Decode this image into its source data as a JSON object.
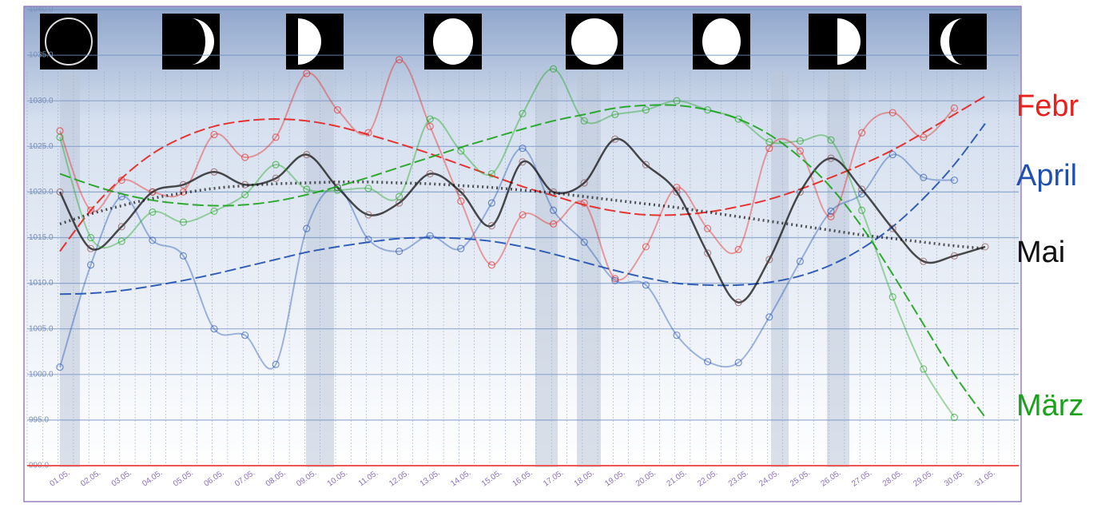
{
  "chart_data": {
    "type": "line",
    "categories": [
      "01.05.",
      "02.05.",
      "03.05.",
      "04.05.",
      "05.05.",
      "06.05.",
      "07.05.",
      "08.05.",
      "09.05.",
      "10.05.",
      "11.05.",
      "12.05.",
      "13.05.",
      "14.05.",
      "15.05.",
      "16.05.",
      "17.05.",
      "18.05.",
      "19.05.",
      "20.05.",
      "21.05.",
      "22.05.",
      "23.05.",
      "24.05.",
      "25.05.",
      "26.05.",
      "27.05.",
      "28.05.",
      "29.05.",
      "30.05.",
      "31.05."
    ],
    "ylim": [
      990,
      1040
    ],
    "yticks": [
      {
        "value": 990,
        "label": "990.0"
      },
      {
        "value": 995,
        "label": "995.0"
      },
      {
        "value": 1000,
        "label": "1000.0"
      },
      {
        "value": 1005,
        "label": "1005.0"
      },
      {
        "value": 1010,
        "label": "1010.0"
      },
      {
        "value": 1015,
        "label": "1015.0"
      },
      {
        "value": 1020,
        "label": "1020.0"
      },
      {
        "value": 1025,
        "label": "1025.0"
      },
      {
        "value": 1030,
        "label": "1030.0"
      },
      {
        "value": 1035,
        "label": "1035.0"
      },
      {
        "value": 1040,
        "label": "1040.0"
      }
    ],
    "grid": true,
    "series": [
      {
        "name": "Febr",
        "color": "#e8201c",
        "values": [
          1026.7,
          1018,
          1021.3,
          1020,
          1020,
          1026.3,
          1023.8,
          1026,
          1033,
          1029,
          1026.5,
          1034.5,
          1027.2,
          1019,
          1012,
          1017.5,
          1016.5,
          1018.8,
          1010.5,
          1014,
          1020.5,
          1016,
          1013.7,
          1024.8,
          1024.5,
          1017.3,
          1026.5,
          1028.7,
          1026,
          1029.2,
          null
        ],
        "trend": [
          1013.5,
          1018,
          1021.5,
          1024.2,
          1026,
          1027.2,
          1027.8,
          1028,
          1027.8,
          1027.2,
          1026.3,
          1025.3,
          1024.2,
          1023,
          1021.8,
          1020.6,
          1019.6,
          1018.6,
          1017.9,
          1017.5,
          1017.5,
          1017.8,
          1018.4,
          1019.2,
          1020.3,
          1021.6,
          1023,
          1024.6,
          1026.5,
          1028.5,
          1030.5
        ]
      },
      {
        "name": "April",
        "color": "#1f4fb0",
        "values": [
          1000.8,
          1012,
          1019.5,
          1014.7,
          1013,
          1005,
          1004.3,
          1001.1,
          1016,
          1020.5,
          1014.8,
          1013.5,
          1015.2,
          1013.8,
          1018.8,
          1024.8,
          1018,
          1014.5,
          1010.3,
          1009.8,
          1004.3,
          1001.4,
          1001.3,
          1006.3,
          1012.4,
          1017.9,
          1019.8,
          1024.1,
          1021.6,
          1021.3,
          null
        ],
        "trend": [
          1008.8,
          1008.9,
          1009.2,
          1009.7,
          1010.3,
          1011,
          1011.8,
          1012.6,
          1013.4,
          1014,
          1014.5,
          1014.9,
          1015,
          1014.9,
          1014.6,
          1014,
          1013.2,
          1012.3,
          1011.4,
          1010.6,
          1010,
          1009.8,
          1009.8,
          1010.1,
          1010.8,
          1012,
          1013.8,
          1016.2,
          1019.3,
          1023,
          1027.5
        ]
      },
      {
        "name": "Mai",
        "color": "#111111",
        "values": [
          1020,
          1013.8,
          1016.2,
          1020,
          1020.8,
          1022.2,
          1020.8,
          1021.5,
          1024.1,
          1020.5,
          1017.5,
          1018.8,
          1022,
          1020,
          1016.3,
          1023.3,
          1020,
          1021,
          1025.8,
          1023,
          1020,
          1013.3,
          1007.9,
          1012.6,
          1020,
          1023.7,
          1020.3,
          1016,
          1012.4,
          1013,
          1014
        ],
        "trend": [
          1016.5,
          1017.6,
          1018.5,
          1019.3,
          1019.9,
          1020.4,
          1020.7,
          1020.9,
          1021,
          1021.1,
          1021.1,
          1021,
          1020.9,
          1020.7,
          1020.5,
          1020.2,
          1019.9,
          1019.5,
          1019.1,
          1018.7,
          1018.3,
          1017.8,
          1017.3,
          1016.8,
          1016.3,
          1015.8,
          1015.3,
          1014.9,
          1014.5,
          1014.1,
          1013.8
        ]
      },
      {
        "name": "März",
        "color": "#1aa31a",
        "values": [
          1026,
          1015,
          1014.6,
          1017.8,
          1016.7,
          1017.9,
          1019.7,
          1023,
          1020.3,
          1020.2,
          1020.4,
          1019.5,
          1028,
          1024.5,
          1022,
          1028.6,
          1033.5,
          1027.8,
          1028.5,
          1029,
          1030,
          1029,
          1028,
          1025.5,
          1025.6,
          1025.7,
          1018,
          1008.5,
          1000.6,
          995.3,
          null
        ],
        "trend": [
          1022,
          1020.8,
          1019.8,
          1019.1,
          1018.7,
          1018.5,
          1018.6,
          1019,
          1019.7,
          1020.6,
          1021.6,
          1022.7,
          1023.8,
          1024.9,
          1025.9,
          1026.9,
          1027.8,
          1028.5,
          1029.2,
          1029.5,
          1029.5,
          1029,
          1028,
          1026.3,
          1023.8,
          1020.5,
          1016.2,
          1011,
          1005.5,
          1000,
          995.3
        ]
      }
    ]
  }
}
